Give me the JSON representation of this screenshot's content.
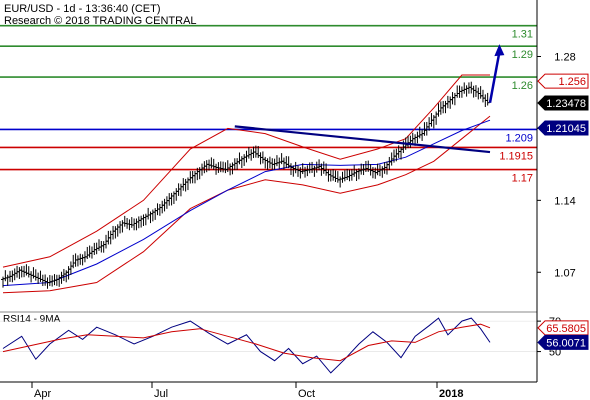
{
  "header": {
    "line1": "EUR/USD - 1d - 13:36:40 (CET)",
    "line2": "Research © 2018 TRADING CENTRAL"
  },
  "rsi_panel": {
    "label": "RSI14 - 9MA"
  },
  "colors": {
    "resistance": "#2e8b2e",
    "pivot": "#0000cc",
    "support": "#cc0000",
    "price": "#000000",
    "bollinger": "#cc0000",
    "moving_average": "#0000cc",
    "trendline": "#000080",
    "arrow": "#0000aa",
    "rsi": "#000080",
    "rsi_ma": "#cc0000"
  },
  "chart_data": [
    {
      "type": "line",
      "title": "EUR/USD - 1d",
      "price_axis_ticks": [
        "1.28",
        "1.21",
        "1.14",
        "1.07"
      ],
      "time_axis_ticks": [
        "Apr",
        "Jul",
        "Oct",
        "2018"
      ],
      "ylim": [
        1.043,
        1.335
      ],
      "grid": false,
      "levels": [
        {
          "label": "1.31",
          "value": 1.31,
          "role": "resistance",
          "color": "#2e8b2e"
        },
        {
          "label": "1.29",
          "value": 1.29,
          "role": "resistance",
          "color": "#2e8b2e"
        },
        {
          "label": "1.26",
          "value": 1.26,
          "role": "resistance",
          "color": "#2e8b2e"
        },
        {
          "label": "1.209",
          "value": 1.209,
          "role": "pivot",
          "color": "#0000cc"
        },
        {
          "label": "1.1915",
          "value": 1.1915,
          "role": "support",
          "color": "#cc0000"
        },
        {
          "label": "1.17",
          "value": 1.17,
          "role": "support",
          "color": "#cc0000"
        }
      ],
      "badges": [
        {
          "label": "1.256",
          "value": 1.256,
          "style": "red-outline"
        },
        {
          "label": "1.23478",
          "value": 1.23478,
          "style": "black-fill"
        },
        {
          "label": "1.21045",
          "value": 1.21045,
          "style": "blue-fill"
        }
      ],
      "price_series": [
        {
          "t": 0,
          "v": 1.063
        },
        {
          "t": 4,
          "v": 1.066
        },
        {
          "t": 8,
          "v": 1.072
        },
        {
          "t": 12,
          "v": 1.068
        },
        {
          "t": 16,
          "v": 1.064
        },
        {
          "t": 20,
          "v": 1.06
        },
        {
          "t": 24,
          "v": 1.063
        },
        {
          "t": 28,
          "v": 1.07
        },
        {
          "t": 32,
          "v": 1.082
        },
        {
          "t": 36,
          "v": 1.085
        },
        {
          "t": 40,
          "v": 1.092
        },
        {
          "t": 44,
          "v": 1.097
        },
        {
          "t": 48,
          "v": 1.11
        },
        {
          "t": 52,
          "v": 1.118
        },
        {
          "t": 56,
          "v": 1.116
        },
        {
          "t": 60,
          "v": 1.122
        },
        {
          "t": 64,
          "v": 1.127
        },
        {
          "t": 68,
          "v": 1.133
        },
        {
          "t": 72,
          "v": 1.142
        },
        {
          "t": 76,
          "v": 1.151
        },
        {
          "t": 80,
          "v": 1.16
        },
        {
          "t": 84,
          "v": 1.168
        },
        {
          "t": 88,
          "v": 1.175
        },
        {
          "t": 92,
          "v": 1.172
        },
        {
          "t": 96,
          "v": 1.17
        },
        {
          "t": 100,
          "v": 1.176
        },
        {
          "t": 104,
          "v": 1.182
        },
        {
          "t": 108,
          "v": 1.187
        },
        {
          "t": 112,
          "v": 1.18
        },
        {
          "t": 116,
          "v": 1.175
        },
        {
          "t": 120,
          "v": 1.178
        },
        {
          "t": 124,
          "v": 1.172
        },
        {
          "t": 128,
          "v": 1.168
        },
        {
          "t": 132,
          "v": 1.17
        },
        {
          "t": 136,
          "v": 1.173
        },
        {
          "t": 140,
          "v": 1.165
        },
        {
          "t": 144,
          "v": 1.16
        },
        {
          "t": 148,
          "v": 1.163
        },
        {
          "t": 152,
          "v": 1.168
        },
        {
          "t": 156,
          "v": 1.171
        },
        {
          "t": 160,
          "v": 1.167
        },
        {
          "t": 164,
          "v": 1.172
        },
        {
          "t": 168,
          "v": 1.183
        },
        {
          "t": 172,
          "v": 1.192
        },
        {
          "t": 176,
          "v": 1.2
        },
        {
          "t": 180,
          "v": 1.205
        },
        {
          "t": 184,
          "v": 1.218
        },
        {
          "t": 188,
          "v": 1.23
        },
        {
          "t": 192,
          "v": 1.238
        },
        {
          "t": 196,
          "v": 1.246
        },
        {
          "t": 200,
          "v": 1.25
        },
        {
          "t": 204,
          "v": 1.244
        },
        {
          "t": 208,
          "v": 1.235
        }
      ],
      "upper_band": [
        {
          "t": 0,
          "v": 1.075
        },
        {
          "t": 20,
          "v": 1.085
        },
        {
          "t": 40,
          "v": 1.11
        },
        {
          "t": 60,
          "v": 1.14
        },
        {
          "t": 80,
          "v": 1.19
        },
        {
          "t": 96,
          "v": 1.21
        },
        {
          "t": 112,
          "v": 1.205
        },
        {
          "t": 128,
          "v": 1.192
        },
        {
          "t": 144,
          "v": 1.18
        },
        {
          "t": 160,
          "v": 1.19
        },
        {
          "t": 172,
          "v": 1.2
        },
        {
          "t": 184,
          "v": 1.23
        },
        {
          "t": 196,
          "v": 1.262
        },
        {
          "t": 208,
          "v": 1.262
        }
      ],
      "lower_band": [
        {
          "t": 0,
          "v": 1.05
        },
        {
          "t": 20,
          "v": 1.052
        },
        {
          "t": 40,
          "v": 1.06
        },
        {
          "t": 60,
          "v": 1.09
        },
        {
          "t": 80,
          "v": 1.132
        },
        {
          "t": 96,
          "v": 1.15
        },
        {
          "t": 112,
          "v": 1.16
        },
        {
          "t": 128,
          "v": 1.155
        },
        {
          "t": 144,
          "v": 1.147
        },
        {
          "t": 160,
          "v": 1.155
        },
        {
          "t": 172,
          "v": 1.165
        },
        {
          "t": 184,
          "v": 1.178
        },
        {
          "t": 196,
          "v": 1.2
        },
        {
          "t": 208,
          "v": 1.222
        }
      ],
      "moving_average": [
        {
          "t": 0,
          "v": 1.057
        },
        {
          "t": 20,
          "v": 1.06
        },
        {
          "t": 40,
          "v": 1.078
        },
        {
          "t": 60,
          "v": 1.102
        },
        {
          "t": 80,
          "v": 1.13
        },
        {
          "t": 96,
          "v": 1.15
        },
        {
          "t": 112,
          "v": 1.168
        },
        {
          "t": 128,
          "v": 1.175
        },
        {
          "t": 144,
          "v": 1.174
        },
        {
          "t": 160,
          "v": 1.175
        },
        {
          "t": 172,
          "v": 1.182
        },
        {
          "t": 184,
          "v": 1.195
        },
        {
          "t": 196,
          "v": 1.208
        },
        {
          "t": 208,
          "v": 1.218
        }
      ],
      "trendline": [
        {
          "t": 99,
          "v": 1.212
        },
        {
          "t": 208,
          "v": 1.187
        }
      ],
      "projection_arrow": [
        {
          "t": 208,
          "v": 1.235
        },
        {
          "t": 212,
          "v": 1.292
        }
      ]
    },
    {
      "type": "line",
      "title": "RSI14 - 9MA",
      "axis_ticks": [
        "70",
        "50"
      ],
      "ylim": [
        30,
        76
      ],
      "badges": [
        {
          "label": "65.5805",
          "value": 65.5805,
          "style": "red-outline"
        },
        {
          "label": "56.0071",
          "value": 56.0071,
          "style": "blue-fill"
        }
      ],
      "series": [
        {
          "name": "RSI14",
          "color": "#000080",
          "points": [
            {
              "t": 0,
              "v": 52
            },
            {
              "t": 8,
              "v": 60
            },
            {
              "t": 14,
              "v": 45
            },
            {
              "t": 20,
              "v": 55
            },
            {
              "t": 28,
              "v": 64
            },
            {
              "t": 34,
              "v": 58
            },
            {
              "t": 40,
              "v": 66
            },
            {
              "t": 48,
              "v": 61
            },
            {
              "t": 56,
              "v": 55
            },
            {
              "t": 64,
              "v": 60
            },
            {
              "t": 72,
              "v": 66
            },
            {
              "t": 80,
              "v": 70
            },
            {
              "t": 88,
              "v": 62
            },
            {
              "t": 96,
              "v": 55
            },
            {
              "t": 104,
              "v": 61
            },
            {
              "t": 110,
              "v": 50
            },
            {
              "t": 116,
              "v": 44
            },
            {
              "t": 122,
              "v": 52
            },
            {
              "t": 128,
              "v": 42
            },
            {
              "t": 134,
              "v": 47
            },
            {
              "t": 140,
              "v": 36
            },
            {
              "t": 146,
              "v": 45
            },
            {
              "t": 152,
              "v": 55
            },
            {
              "t": 158,
              "v": 63
            },
            {
              "t": 164,
              "v": 56
            },
            {
              "t": 170,
              "v": 46
            },
            {
              "t": 176,
              "v": 60
            },
            {
              "t": 182,
              "v": 67
            },
            {
              "t": 186,
              "v": 72
            },
            {
              "t": 190,
              "v": 61
            },
            {
              "t": 196,
              "v": 70
            },
            {
              "t": 200,
              "v": 72
            },
            {
              "t": 204,
              "v": 65
            },
            {
              "t": 208,
              "v": 56
            }
          ]
        },
        {
          "name": "9MA",
          "color": "#cc0000",
          "points": [
            {
              "t": 0,
              "v": 50
            },
            {
              "t": 12,
              "v": 54
            },
            {
              "t": 24,
              "v": 58
            },
            {
              "t": 36,
              "v": 61
            },
            {
              "t": 48,
              "v": 60
            },
            {
              "t": 60,
              "v": 59
            },
            {
              "t": 72,
              "v": 63
            },
            {
              "t": 84,
              "v": 65
            },
            {
              "t": 96,
              "v": 60
            },
            {
              "t": 108,
              "v": 55
            },
            {
              "t": 120,
              "v": 49
            },
            {
              "t": 132,
              "v": 46
            },
            {
              "t": 144,
              "v": 44
            },
            {
              "t": 156,
              "v": 54
            },
            {
              "t": 166,
              "v": 57
            },
            {
              "t": 176,
              "v": 56
            },
            {
              "t": 186,
              "v": 63
            },
            {
              "t": 196,
              "v": 66
            },
            {
              "t": 204,
              "v": 68
            },
            {
              "t": 208,
              "v": 65.6
            }
          ]
        }
      ]
    }
  ]
}
